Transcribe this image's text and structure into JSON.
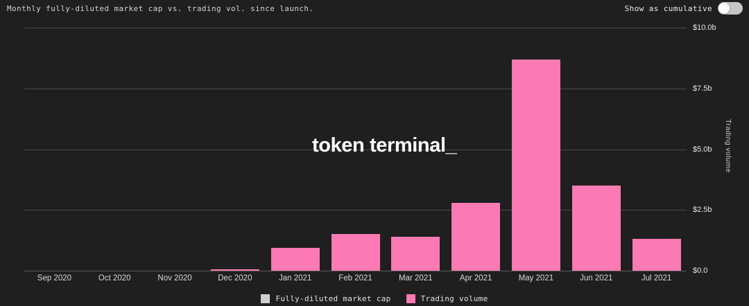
{
  "header": {
    "title": "Monthly fully-diluted market cap vs. trading vol. since launch.",
    "toggle": {
      "label": "Show as cumulative",
      "state": "off"
    }
  },
  "watermark": "token terminal_",
  "chart_data": {
    "type": "bar",
    "title": "Monthly fully-diluted market cap vs. trading vol. since launch.",
    "categories": [
      "Sep 2020",
      "Oct 2020",
      "Nov 2020",
      "Dec 2020",
      "Jan 2021",
      "Feb 2021",
      "Mar 2021",
      "Apr 2021",
      "May 2021",
      "Jun 2021",
      "Jul 2021"
    ],
    "series": [
      {
        "name": "Fully-diluted market cap",
        "color": "#cfcfcf",
        "values": [
          0,
          0,
          0,
          0,
          0,
          0,
          0,
          0,
          0,
          0,
          0
        ]
      },
      {
        "name": "Trading volume",
        "color": "#fb7ab3",
        "values": [
          0,
          0,
          0,
          0.07,
          0.95,
          1.5,
          1.4,
          2.8,
          8.7,
          3.5,
          1.3
        ]
      }
    ],
    "xlabel": "",
    "ylabel": "Trading volume",
    "unit": "billions USD",
    "ylim": [
      0,
      10
    ],
    "yticks": [
      {
        "label": "$10.0b",
        "value": 10
      },
      {
        "label": "$7.5b",
        "value": 7.5
      },
      {
        "label": "$5.0b",
        "value": 5
      },
      {
        "label": "$2.5b",
        "value": 2.5
      },
      {
        "label": "$0.0",
        "value": 0
      }
    ],
    "grid": true,
    "legend_position": "bottom"
  },
  "colors": {
    "background": "#1e1f1e",
    "gridline": "#4a4b4a",
    "trading_volume_pink": "#fb7ab3",
    "market_cap_gray": "#cfcfcf",
    "text_primary": "#ececec",
    "text_secondary": "#d3d3d3",
    "watermark_white": "#ffffff"
  }
}
